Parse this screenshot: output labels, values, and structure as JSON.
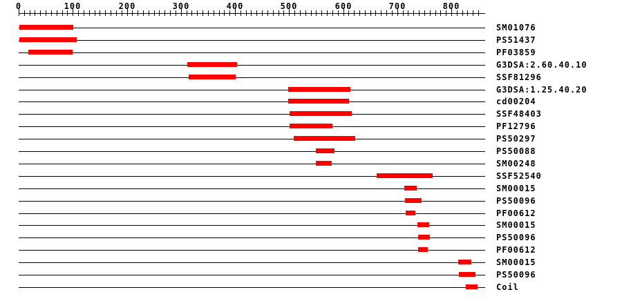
{
  "chart_data": {
    "type": "bar",
    "subtype": "protein-domain-architecture",
    "orientation": "horizontal-range",
    "title": "",
    "xlabel": "",
    "ylabel": "",
    "legend": "none",
    "grid": "off",
    "axis": {
      "min": 0,
      "max": 860,
      "minor_tick_step": 10,
      "major_tick_step": 100,
      "last_minor_tick": 850,
      "major_tick_labels": [
        "0",
        "100",
        "200",
        "300",
        "400",
        "500",
        "600",
        "700",
        "800"
      ]
    },
    "bar_color": "#ff0000",
    "line_color": "#000000",
    "text_color": "#000000",
    "background_color": "#ffffff",
    "rows": [
      {
        "label": "SM01076",
        "start": 1,
        "end": 101
      },
      {
        "label": "PS51437",
        "start": 1,
        "end": 107
      },
      {
        "label": "PF03859",
        "start": 18,
        "end": 100
      },
      {
        "label": "G3DSA:2.60.40.10",
        "start": 312,
        "end": 404
      },
      {
        "label": "SSF81296",
        "start": 314,
        "end": 401
      },
      {
        "label": "G3DSA:1.25.40.20",
        "start": 499,
        "end": 614
      },
      {
        "label": "cd00204",
        "start": 499,
        "end": 611
      },
      {
        "label": "SSF48403",
        "start": 501,
        "end": 616
      },
      {
        "label": "PF12796",
        "start": 501,
        "end": 580
      },
      {
        "label": "PS50297",
        "start": 508,
        "end": 622
      },
      {
        "label": "PS50088",
        "start": 550,
        "end": 584
      },
      {
        "label": "SM00248",
        "start": 550,
        "end": 580
      },
      {
        "label": "SSF52540",
        "start": 662,
        "end": 766
      },
      {
        "label": "SM00015",
        "start": 713,
        "end": 736
      },
      {
        "label": "PS50096",
        "start": 714,
        "end": 745
      },
      {
        "label": "PF00612",
        "start": 716,
        "end": 734
      },
      {
        "label": "SM00015",
        "start": 737,
        "end": 759
      },
      {
        "label": "PS50096",
        "start": 739,
        "end": 761
      },
      {
        "label": "PF00612",
        "start": 739,
        "end": 757
      },
      {
        "label": "SM00015",
        "start": 813,
        "end": 837
      },
      {
        "label": "PS50096",
        "start": 814,
        "end": 845
      },
      {
        "label": "Coil",
        "start": 827,
        "end": 849
      }
    ]
  }
}
